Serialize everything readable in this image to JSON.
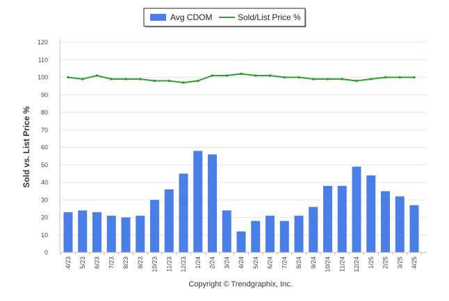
{
  "chart_data": {
    "type": "bar",
    "categories": [
      "4/23",
      "5/23",
      "6/23",
      "7/23",
      "8/23",
      "9/23",
      "10/23",
      "11/23",
      "12/23",
      "1/24",
      "2/24",
      "3/24",
      "4/24",
      "5/24",
      "6/24",
      "7/24",
      "8/24",
      "9/24",
      "10/24",
      "11/24",
      "12/24",
      "1/25",
      "2/25",
      "3/25",
      "4/25"
    ],
    "series": [
      {
        "name": "Avg CDOM",
        "type": "bar",
        "color": "#4a7fe8",
        "values": [
          23,
          24,
          23,
          21,
          20,
          21,
          30,
          36,
          45,
          58,
          56,
          24,
          12,
          18,
          21,
          18,
          21,
          26,
          38,
          38,
          49,
          44,
          35,
          32,
          27
        ]
      },
      {
        "name": "Sold/List Price %",
        "type": "line",
        "color": "#2ca02c",
        "values": [
          100,
          99,
          101,
          99,
          99,
          99,
          98,
          98,
          97,
          98,
          101,
          101,
          102,
          101,
          101,
          100,
          100,
          99,
          99,
          99,
          98,
          99,
          100,
          100,
          100
        ]
      }
    ],
    "title": "",
    "xlabel": "",
    "ylabel": "Sold vs. List Price %",
    "ylim": [
      0,
      120
    ],
    "yticks": [
      0,
      10,
      20,
      30,
      40,
      50,
      60,
      70,
      80,
      90,
      100,
      110,
      120
    ],
    "grid": true,
    "legend": "top-center"
  },
  "footer": {
    "copyright": "Copyright © Trendgraphix, Inc."
  }
}
